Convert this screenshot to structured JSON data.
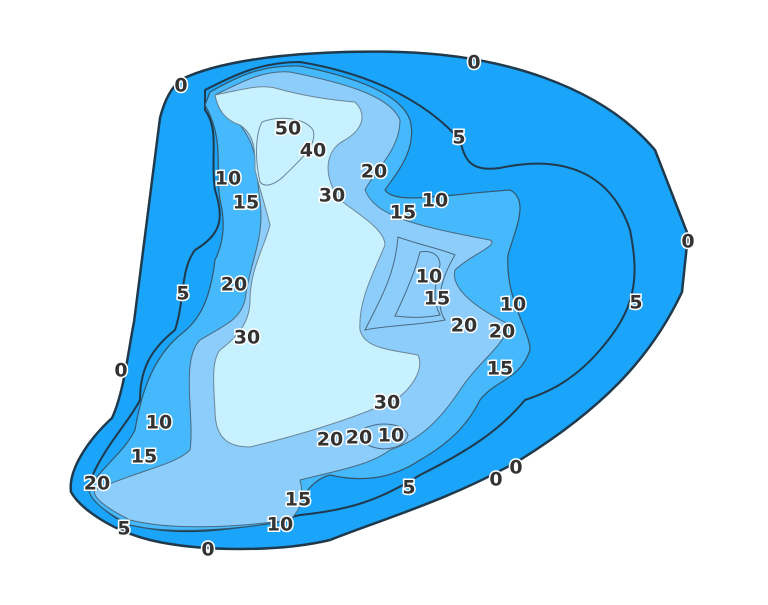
{
  "colors": {
    "depth_0_10": "#1aa4fa",
    "depth_10_20": "#45b9fb",
    "depth_20_30": "#8dcdfc",
    "depth_30_plus": "#c7f1ff",
    "shoreline": "#1f3a4d"
  },
  "contour_levels": [
    0,
    5,
    10,
    15,
    20,
    30,
    40,
    50
  ],
  "labels": [
    "0",
    "0",
    "5",
    "0",
    "5",
    "5",
    "0",
    "10",
    "15",
    "20",
    "30",
    "50",
    "40",
    "30",
    "20",
    "15",
    "10",
    "10",
    "15",
    "10",
    "20",
    "20",
    "15",
    "30",
    "20",
    "20",
    "10",
    "10",
    "15",
    "20",
    "5",
    "15",
    "10",
    "5",
    "0",
    "0",
    "0"
  ]
}
